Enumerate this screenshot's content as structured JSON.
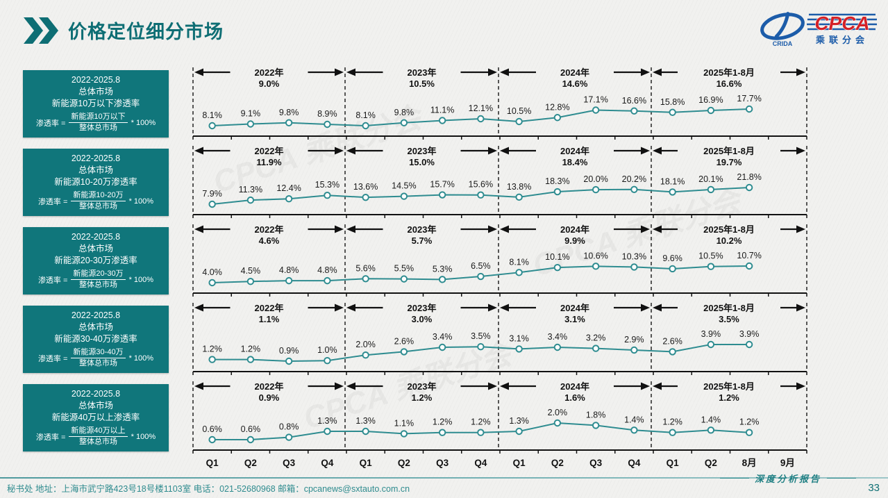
{
  "header": {
    "title": "价格定位细分市场"
  },
  "logo": {
    "name": "CPCA",
    "subtitle": "乘联分会",
    "mark": "CRIDA"
  },
  "x_labels": [
    "Q1",
    "Q2",
    "Q3",
    "Q4",
    "Q1",
    "Q2",
    "Q3",
    "Q4",
    "Q1",
    "Q2",
    "Q3",
    "Q4",
    "Q1",
    "Q2",
    "8月",
    "9月"
  ],
  "colors": {
    "teal": "#0E6E74",
    "box_bg": "#10767B",
    "line": "#2E8C90",
    "footer_text": "#2E8B8E"
  },
  "chart_data": [
    {
      "type": "line",
      "title": "新能源10万以下渗透率",
      "box": {
        "period": "2022-2025.8",
        "market": "总体市场",
        "metric": "新能源10万以下渗透率",
        "formula_lhs": "渗透率 =",
        "numerator": "新能源10万以下",
        "denominator": "整体总市场",
        "multiplier": "* 100%"
      },
      "periods": [
        {
          "label": "2022年",
          "avg": "9.0%"
        },
        {
          "label": "2023年",
          "avg": "10.5%"
        },
        {
          "label": "2024年",
          "avg": "14.6%"
        },
        {
          "label": "2025年1-8月",
          "avg": "16.6%"
        }
      ],
      "categories": [
        "Q1",
        "Q2",
        "Q3",
        "Q4",
        "Q1",
        "Q2",
        "Q3",
        "Q4",
        "Q1",
        "Q2",
        "Q3",
        "Q4",
        "Q1",
        "Q2",
        "8月",
        "9月"
      ],
      "values": [
        8.1,
        9.1,
        9.8,
        8.9,
        8.1,
        9.8,
        11.1,
        12.1,
        10.5,
        12.8,
        17.1,
        16.6,
        15.8,
        16.9,
        17.7
      ]
    },
    {
      "type": "line",
      "title": "新能源10-20万渗透率",
      "box": {
        "period": "2022-2025.8",
        "market": "总体市场",
        "metric": "新能源10-20万渗透率",
        "formula_lhs": "渗透率 =",
        "numerator": "新能源10-20万",
        "denominator": "整体总市场",
        "multiplier": "* 100%"
      },
      "periods": [
        {
          "label": "2022年",
          "avg": "11.9%"
        },
        {
          "label": "2023年",
          "avg": "15.0%"
        },
        {
          "label": "2024年",
          "avg": "18.4%"
        },
        {
          "label": "2025年1-8月",
          "avg": "19.7%"
        }
      ],
      "categories": [
        "Q1",
        "Q2",
        "Q3",
        "Q4",
        "Q1",
        "Q2",
        "Q3",
        "Q4",
        "Q1",
        "Q2",
        "Q3",
        "Q4",
        "Q1",
        "Q2",
        "8月",
        "9月"
      ],
      "values": [
        7.9,
        11.3,
        12.4,
        15.3,
        13.6,
        14.5,
        15.7,
        15.6,
        13.8,
        18.3,
        20.0,
        20.2,
        18.1,
        20.1,
        21.8
      ]
    },
    {
      "type": "line",
      "title": "新能源20-30万渗透率",
      "box": {
        "period": "2022-2025.8",
        "market": "总体市场",
        "metric": "新能源20-30万渗透率",
        "formula_lhs": "渗透率 =",
        "numerator": "新能源20-30万",
        "denominator": "整体总市场",
        "multiplier": "* 100%"
      },
      "periods": [
        {
          "label": "2022年",
          "avg": "4.6%"
        },
        {
          "label": "2023年",
          "avg": "5.7%"
        },
        {
          "label": "2024年",
          "avg": "9.9%"
        },
        {
          "label": "2025年1-8月",
          "avg": "10.2%"
        }
      ],
      "categories": [
        "Q1",
        "Q2",
        "Q3",
        "Q4",
        "Q1",
        "Q2",
        "Q3",
        "Q4",
        "Q1",
        "Q2",
        "Q3",
        "Q4",
        "Q1",
        "Q2",
        "8月",
        "9月"
      ],
      "values": [
        4.0,
        4.5,
        4.8,
        4.8,
        5.6,
        5.5,
        5.3,
        6.5,
        8.1,
        10.1,
        10.6,
        10.3,
        9.6,
        10.5,
        10.7
      ]
    },
    {
      "type": "line",
      "title": "新能源30-40万渗透率",
      "box": {
        "period": "2022-2025.8",
        "market": "总体市场",
        "metric": "新能源30-40万渗透率",
        "formula_lhs": "渗透率 =",
        "numerator": "新能源30-40万",
        "denominator": "整体总市场",
        "multiplier": "* 100%"
      },
      "periods": [
        {
          "label": "2022年",
          "avg": "1.1%"
        },
        {
          "label": "2023年",
          "avg": "3.0%"
        },
        {
          "label": "2024年",
          "avg": "3.1%"
        },
        {
          "label": "2025年1-8月",
          "avg": "3.5%"
        }
      ],
      "categories": [
        "Q1",
        "Q2",
        "Q3",
        "Q4",
        "Q1",
        "Q2",
        "Q3",
        "Q4",
        "Q1",
        "Q2",
        "Q3",
        "Q4",
        "Q1",
        "Q2",
        "8月",
        "9月"
      ],
      "values": [
        1.2,
        1.2,
        0.9,
        1.0,
        2.0,
        2.6,
        3.4,
        3.5,
        3.1,
        3.4,
        3.2,
        2.9,
        2.6,
        3.9,
        3.9
      ]
    },
    {
      "type": "line",
      "title": "新能源40万以上渗透率",
      "box": {
        "period": "2022-2025.8",
        "market": "总体市场",
        "metric": "新能源40万以上渗透率",
        "formula_lhs": "渗透率 =",
        "numerator": "新能源40万以上",
        "denominator": "整体总市场",
        "multiplier": "* 100%"
      },
      "periods": [
        {
          "label": "2022年",
          "avg": "0.9%"
        },
        {
          "label": "2023年",
          "avg": "1.2%"
        },
        {
          "label": "2024年",
          "avg": "1.6%"
        },
        {
          "label": "2025年1-8月",
          "avg": "1.2%"
        }
      ],
      "categories": [
        "Q1",
        "Q2",
        "Q3",
        "Q4",
        "Q1",
        "Q2",
        "Q3",
        "Q4",
        "Q1",
        "Q2",
        "Q3",
        "Q4",
        "Q1",
        "Q2",
        "8月",
        "9月"
      ],
      "values": [
        0.6,
        0.6,
        0.8,
        1.3,
        1.3,
        1.1,
        1.2,
        1.2,
        1.3,
        2.0,
        1.8,
        1.4,
        1.2,
        1.4,
        1.2
      ]
    }
  ],
  "footer": {
    "left": "秘书处   地址：上海市武宁路423号18号楼1103室 电话：021-52680968   邮箱：cpcanews@sxtauto.com.cn",
    "report_label": "深度分析报告",
    "page": "33"
  }
}
